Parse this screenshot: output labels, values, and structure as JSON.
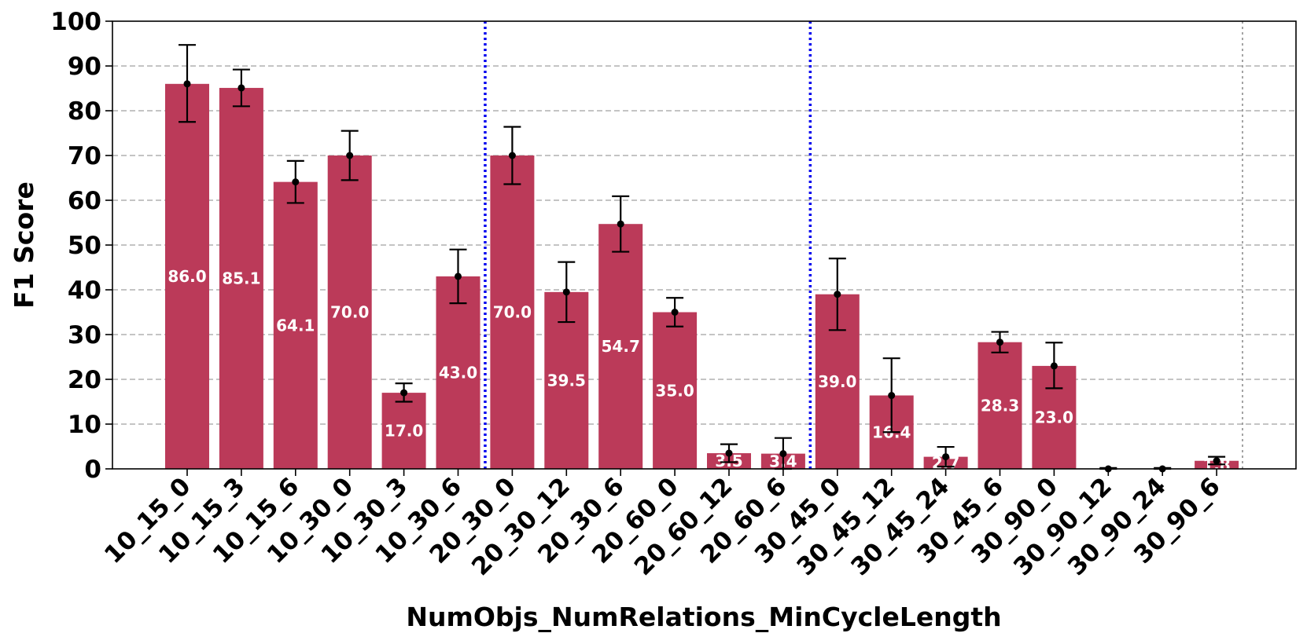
{
  "chart_data": {
    "type": "bar",
    "xlabel": "NumObjs_NumRelations_MinCycleLength",
    "ylabel": "F1 Score",
    "ylim": [
      0,
      100
    ],
    "yticks": [
      0,
      10,
      20,
      30,
      40,
      50,
      60,
      70,
      80,
      90,
      100
    ],
    "grid": "horizontal dashed",
    "bar_color": "#bb3a59",
    "group_separator_color": "#0000ee",
    "categories": [
      "10_15_0",
      "10_15_3",
      "10_15_6",
      "10_30_0",
      "10_30_3",
      "10_30_6",
      "20_30_0",
      "20_30_12",
      "20_30_6",
      "20_60_0",
      "20_60_12",
      "20_60_6",
      "30_45_0",
      "30_45_12",
      "30_45_24",
      "30_45_6",
      "30_90_0",
      "30_90_12",
      "30_90_24",
      "30_90_6"
    ],
    "values": [
      86.0,
      85.1,
      64.1,
      70.0,
      17.0,
      43.0,
      70.0,
      39.5,
      54.7,
      35.0,
      3.5,
      3.4,
      39.0,
      16.4,
      2.7,
      28.3,
      23.0,
      0.0,
      0.0,
      1.8
    ],
    "error_low": [
      77.5,
      81.0,
      59.4,
      64.5,
      15.0,
      37.0,
      63.6,
      32.8,
      48.5,
      31.8,
      1.5,
      0.0,
      31.0,
      8.2,
      0.5,
      26.0,
      18.0,
      0.0,
      0.0,
      1.0
    ],
    "error_high": [
      94.7,
      89.2,
      68.8,
      75.5,
      19.1,
      49.0,
      76.4,
      46.2,
      60.9,
      38.2,
      5.5,
      6.9,
      47.0,
      24.7,
      4.9,
      30.6,
      28.2,
      0.2,
      0.2,
      2.7
    ],
    "labels": [
      "86.0",
      "85.1",
      "64.1",
      "70.0",
      "17.0",
      "43.0",
      "70.0",
      "39.5",
      "54.7",
      "35.0",
      "3.5",
      "3.4",
      "39.0",
      "16.4",
      "2.7",
      "28.3",
      "23.0",
      "",
      "",
      "1.8"
    ],
    "group_separators_after": [
      "10_30_6",
      "20_60_6"
    ]
  }
}
